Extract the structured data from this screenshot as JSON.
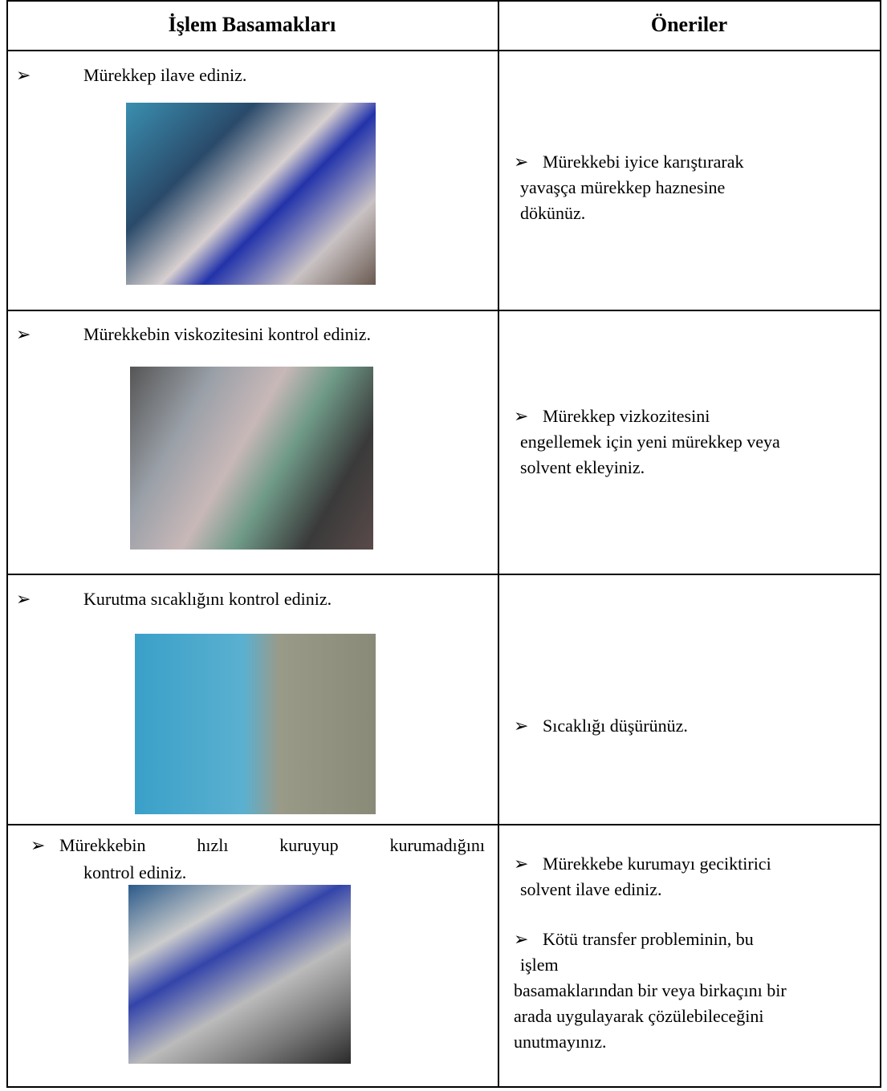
{
  "table": {
    "headers": [
      "İşlem Basamakları",
      "Öneriler"
    ],
    "rows": [
      {
        "step": [
          "Mürekkep ilave ediniz."
        ],
        "tips": [
          [
            "Mürekkebi iyice karıştırarak",
            "yavaşça mürekkep haznesine",
            "dökünüz."
          ]
        ]
      },
      {
        "step": [
          "Mürekkebin viskozitesini kontrol ediniz."
        ],
        "tips": [
          [
            "Mürekkep vizkozitesini",
            "engellemek için yeni mürekkep veya",
            "solvent ekleyiniz."
          ]
        ]
      },
      {
        "step": [
          "Kurutma sıcaklığını kontrol ediniz."
        ],
        "tips": [
          [
            "Sıcaklığı düşürünüz."
          ]
        ]
      },
      {
        "step": [
          "Mürekkebin hızlı kuruyup kurumadığını",
          "kontrol ediniz."
        ],
        "tips": [
          [
            "Mürekkebe kurumayı geciktirici",
            "solvent ilave ediniz."
          ],
          [
            "Kötü transfer probleminin, bu",
            "işlem",
            "basamaklarından bir veya birkaçını bir",
            "arada uygulayarak çözülebileceğini",
            "unutmayınız."
          ]
        ]
      }
    ]
  }
}
